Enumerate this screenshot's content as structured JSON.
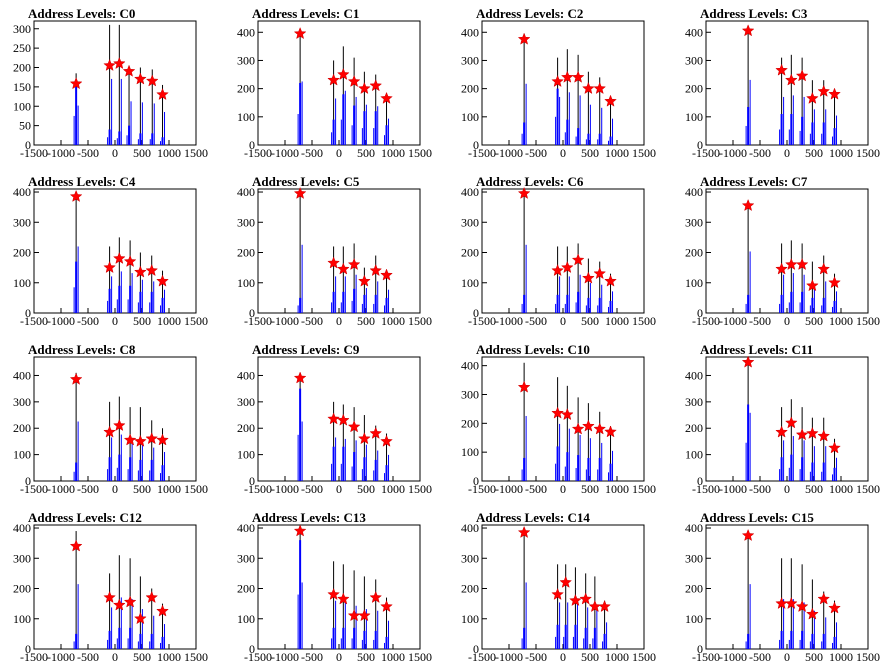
{
  "figure": {
    "title_prefix": "Address Levels: ",
    "x_ticks": [
      -1500,
      -1000,
      -500,
      0,
      500,
      1000,
      1500
    ],
    "x_tick_labels": [
      "-1500",
      "-1000",
      "-500",
      "0",
      "500",
      "1000",
      "1500"
    ],
    "xlim": [
      -1500,
      1500
    ],
    "colors": {
      "histogram": "#0000ff",
      "overflow": "#000000",
      "marker": "#ff0000"
    }
  },
  "chart_data": [
    {
      "type": "bar",
      "title": "Address Levels: C0",
      "ylim": [
        0,
        320
      ],
      "y_ticks": [
        0,
        50,
        100,
        150,
        200,
        250,
        300
      ],
      "x": [
        -720,
        -100,
        80,
        260,
        470,
        690,
        880
      ],
      "values": [
        185,
        310,
        310,
        205,
        200,
        195,
        155
      ],
      "inner": [
        150,
        40,
        35,
        50,
        30,
        30,
        20
      ],
      "markers": [
        [
          -720,
          158
        ],
        [
          -100,
          205
        ],
        [
          80,
          210
        ],
        [
          260,
          190
        ],
        [
          470,
          170
        ],
        [
          690,
          165
        ],
        [
          880,
          130
        ]
      ]
    },
    {
      "type": "bar",
      "title": "Address Levels: C1",
      "ylim": [
        0,
        440
      ],
      "y_ticks": [
        0,
        100,
        200,
        300,
        400
      ],
      "x": [
        -720,
        -100,
        80,
        280,
        470,
        680,
        880
      ],
      "values": [
        410,
        300,
        350,
        310,
        260,
        250,
        170
      ],
      "inner": [
        220,
        90,
        180,
        140,
        120,
        120,
        70
      ],
      "markers": [
        [
          -720,
          395
        ],
        [
          -100,
          230
        ],
        [
          80,
          250
        ],
        [
          280,
          225
        ],
        [
          470,
          200
        ],
        [
          680,
          210
        ],
        [
          880,
          165
        ]
      ]
    },
    {
      "type": "bar",
      "title": "Address Levels: C2",
      "ylim": [
        0,
        440
      ],
      "y_ticks": [
        0,
        100,
        200,
        300,
        400
      ],
      "x": [
        -720,
        -100,
        80,
        280,
        470,
        680,
        880
      ],
      "values": [
        395,
        310,
        340,
        320,
        260,
        240,
        170
      ],
      "inner": [
        80,
        200,
        90,
        60,
        40,
        40,
        30
      ],
      "markers": [
        [
          -720,
          375
        ],
        [
          -100,
          225
        ],
        [
          80,
          240
        ],
        [
          280,
          240
        ],
        [
          470,
          200
        ],
        [
          680,
          200
        ],
        [
          880,
          155
        ]
      ]
    },
    {
      "type": "bar",
      "title": "Address Levels: C3",
      "ylim": [
        0,
        440
      ],
      "y_ticks": [
        0,
        100,
        200,
        300,
        400
      ],
      "x": [
        -720,
        -100,
        80,
        280,
        470,
        680,
        880
      ],
      "values": [
        420,
        310,
        320,
        310,
        230,
        230,
        190
      ],
      "inner": [
        135,
        110,
        110,
        100,
        80,
        80,
        60
      ],
      "markers": [
        [
          -720,
          405
        ],
        [
          -100,
          265
        ],
        [
          80,
          230
        ],
        [
          280,
          245
        ],
        [
          470,
          165
        ],
        [
          680,
          190
        ],
        [
          880,
          180
        ]
      ]
    },
    {
      "type": "bar",
      "title": "Address Levels: C4",
      "ylim": [
        0,
        410
      ],
      "y_ticks": [
        0,
        100,
        200,
        300,
        400
      ],
      "x": [
        -720,
        -100,
        80,
        280,
        470,
        680,
        880
      ],
      "values": [
        400,
        220,
        250,
        240,
        200,
        190,
        140
      ],
      "inner": [
        170,
        80,
        90,
        90,
        70,
        70,
        50
      ],
      "markers": [
        [
          -720,
          385
        ],
        [
          -100,
          150
        ],
        [
          80,
          180
        ],
        [
          280,
          170
        ],
        [
          470,
          135
        ],
        [
          680,
          140
        ],
        [
          880,
          105
        ]
      ]
    },
    {
      "type": "bar",
      "title": "Address Levels: C5",
      "ylim": [
        0,
        410
      ],
      "y_ticks": [
        0,
        100,
        200,
        300,
        400
      ],
      "x": [
        -720,
        -100,
        80,
        280,
        470,
        680,
        880
      ],
      "values": [
        410,
        220,
        220,
        230,
        150,
        190,
        140
      ],
      "inner": [
        50,
        70,
        70,
        80,
        60,
        60,
        50
      ],
      "markers": [
        [
          -720,
          395
        ],
        [
          -100,
          165
        ],
        [
          80,
          145
        ],
        [
          280,
          160
        ],
        [
          470,
          105
        ],
        [
          680,
          140
        ],
        [
          880,
          125
        ]
      ]
    },
    {
      "type": "bar",
      "title": "Address Levels: C6",
      "ylim": [
        0,
        410
      ],
      "y_ticks": [
        0,
        100,
        200,
        300,
        400
      ],
      "x": [
        -720,
        -100,
        80,
        280,
        470,
        680,
        880
      ],
      "values": [
        410,
        220,
        220,
        230,
        180,
        170,
        130
      ],
      "inner": [
        60,
        60,
        60,
        70,
        50,
        50,
        40
      ],
      "markers": [
        [
          -720,
          395
        ],
        [
          -100,
          140
        ],
        [
          80,
          150
        ],
        [
          280,
          175
        ],
        [
          470,
          115
        ],
        [
          680,
          130
        ],
        [
          880,
          105
        ]
      ]
    },
    {
      "type": "bar",
      "title": "Address Levels: C7",
      "ylim": [
        0,
        410
      ],
      "y_ticks": [
        0,
        100,
        200,
        300,
        400
      ],
      "x": [
        -720,
        -100,
        80,
        280,
        470,
        680,
        880
      ],
      "values": [
        370,
        230,
        240,
        230,
        170,
        190,
        130
      ],
      "inner": [
        60,
        60,
        70,
        70,
        50,
        50,
        40
      ],
      "markers": [
        [
          -720,
          355
        ],
        [
          -100,
          145
        ],
        [
          80,
          160
        ],
        [
          280,
          160
        ],
        [
          470,
          90
        ],
        [
          680,
          145
        ],
        [
          880,
          100
        ]
      ]
    },
    {
      "type": "bar",
      "title": "Address Levels: C8",
      "ylim": [
        0,
        470
      ],
      "y_ticks": [
        0,
        100,
        200,
        300,
        400
      ],
      "x": [
        -720,
        -100,
        80,
        280,
        470,
        680,
        880
      ],
      "values": [
        410,
        300,
        320,
        280,
        280,
        230,
        200
      ],
      "inner": [
        70,
        90,
        100,
        90,
        80,
        80,
        60
      ],
      "markers": [
        [
          -720,
          385
        ],
        [
          -100,
          185
        ],
        [
          80,
          210
        ],
        [
          280,
          155
        ],
        [
          470,
          150
        ],
        [
          680,
          160
        ],
        [
          880,
          155
        ]
      ]
    },
    {
      "type": "bar",
      "title": "Address Levels: C9",
      "ylim": [
        0,
        470
      ],
      "y_ticks": [
        0,
        100,
        200,
        300,
        400
      ],
      "x": [
        -720,
        -100,
        80,
        280,
        470,
        680,
        880
      ],
      "values": [
        410,
        300,
        290,
        280,
        250,
        210,
        180
      ],
      "inner": [
        350,
        130,
        130,
        110,
        90,
        80,
        60
      ],
      "markers": [
        [
          -720,
          390
        ],
        [
          -100,
          235
        ],
        [
          80,
          230
        ],
        [
          280,
          205
        ],
        [
          470,
          160
        ],
        [
          680,
          180
        ],
        [
          880,
          150
        ]
      ]
    },
    {
      "type": "bar",
      "title": "Address Levels: C10",
      "ylim": [
        0,
        430
      ],
      "y_ticks": [
        0,
        100,
        200,
        300,
        400
      ],
      "x": [
        -720,
        -100,
        80,
        280,
        470,
        680,
        880
      ],
      "values": [
        410,
        360,
        330,
        290,
        270,
        240,
        190
      ],
      "inner": [
        80,
        120,
        100,
        90,
        80,
        80,
        60
      ],
      "markers": [
        [
          -720,
          325
        ],
        [
          -100,
          235
        ],
        [
          80,
          230
        ],
        [
          280,
          180
        ],
        [
          470,
          190
        ],
        [
          680,
          180
        ],
        [
          880,
          170
        ]
      ]
    },
    {
      "type": "bar",
      "title": "Address Levels: C11",
      "ylim": [
        0,
        470
      ],
      "y_ticks": [
        0,
        100,
        200,
        300,
        400
      ],
      "x": [
        -720,
        -100,
        80,
        280,
        470,
        680,
        880
      ],
      "values": [
        470,
        280,
        310,
        280,
        240,
        240,
        160
      ],
      "inner": [
        290,
        90,
        100,
        90,
        70,
        70,
        50
      ],
      "markers": [
        [
          -720,
          450
        ],
        [
          -100,
          185
        ],
        [
          80,
          220
        ],
        [
          280,
          175
        ],
        [
          470,
          180
        ],
        [
          680,
          170
        ],
        [
          880,
          125
        ]
      ]
    },
    {
      "type": "bar",
      "title": "Address Levels: C12",
      "ylim": [
        0,
        410
      ],
      "y_ticks": [
        0,
        100,
        200,
        300,
        400
      ],
      "x": [
        -720,
        -100,
        80,
        280,
        470,
        680,
        880
      ],
      "values": [
        390,
        250,
        310,
        300,
        240,
        200,
        150
      ],
      "inner": [
        50,
        60,
        70,
        70,
        50,
        50,
        40
      ],
      "markers": [
        [
          -720,
          340
        ],
        [
          -100,
          170
        ],
        [
          80,
          145
        ],
        [
          280,
          155
        ],
        [
          470,
          100
        ],
        [
          680,
          170
        ],
        [
          880,
          125
        ]
      ]
    },
    {
      "type": "bar",
      "title": "Address Levels: C13",
      "ylim": [
        0,
        410
      ],
      "y_ticks": [
        0,
        100,
        200,
        300,
        400
      ],
      "x": [
        -720,
        -100,
        80,
        280,
        470,
        680,
        880
      ],
      "values": [
        400,
        290,
        280,
        260,
        240,
        230,
        170
      ],
      "inner": [
        360,
        70,
        70,
        70,
        60,
        60,
        40
      ],
      "markers": [
        [
          -720,
          390
        ],
        [
          -100,
          180
        ],
        [
          80,
          165
        ],
        [
          280,
          110
        ],
        [
          470,
          110
        ],
        [
          680,
          170
        ],
        [
          880,
          140
        ]
      ]
    },
    {
      "type": "bar",
      "title": "Address Levels: C14",
      "ylim": [
        0,
        410
      ],
      "y_ticks": [
        0,
        100,
        200,
        300,
        400
      ],
      "x": [
        -720,
        -100,
        50,
        230,
        420,
        590,
        770
      ],
      "values": [
        400,
        280,
        280,
        270,
        250,
        240,
        160
      ],
      "inner": [
        70,
        80,
        80,
        80,
        70,
        70,
        50
      ],
      "markers": [
        [
          -720,
          385
        ],
        [
          -100,
          180
        ],
        [
          50,
          220
        ],
        [
          230,
          160
        ],
        [
          420,
          165
        ],
        [
          590,
          140
        ],
        [
          770,
          140
        ]
      ]
    },
    {
      "type": "bar",
      "title": "Address Levels: C15",
      "ylim": [
        0,
        410
      ],
      "y_ticks": [
        0,
        100,
        200,
        300,
        400
      ],
      "x": [
        -720,
        -100,
        80,
        280,
        470,
        680,
        880
      ],
      "values": [
        390,
        300,
        300,
        280,
        230,
        190,
        160
      ],
      "inner": [
        50,
        60,
        60,
        60,
        50,
        50,
        40
      ],
      "markers": [
        [
          -720,
          375
        ],
        [
          -100,
          150
        ],
        [
          80,
          150
        ],
        [
          280,
          140
        ],
        [
          470,
          115
        ],
        [
          680,
          165
        ],
        [
          880,
          135
        ]
      ]
    }
  ]
}
